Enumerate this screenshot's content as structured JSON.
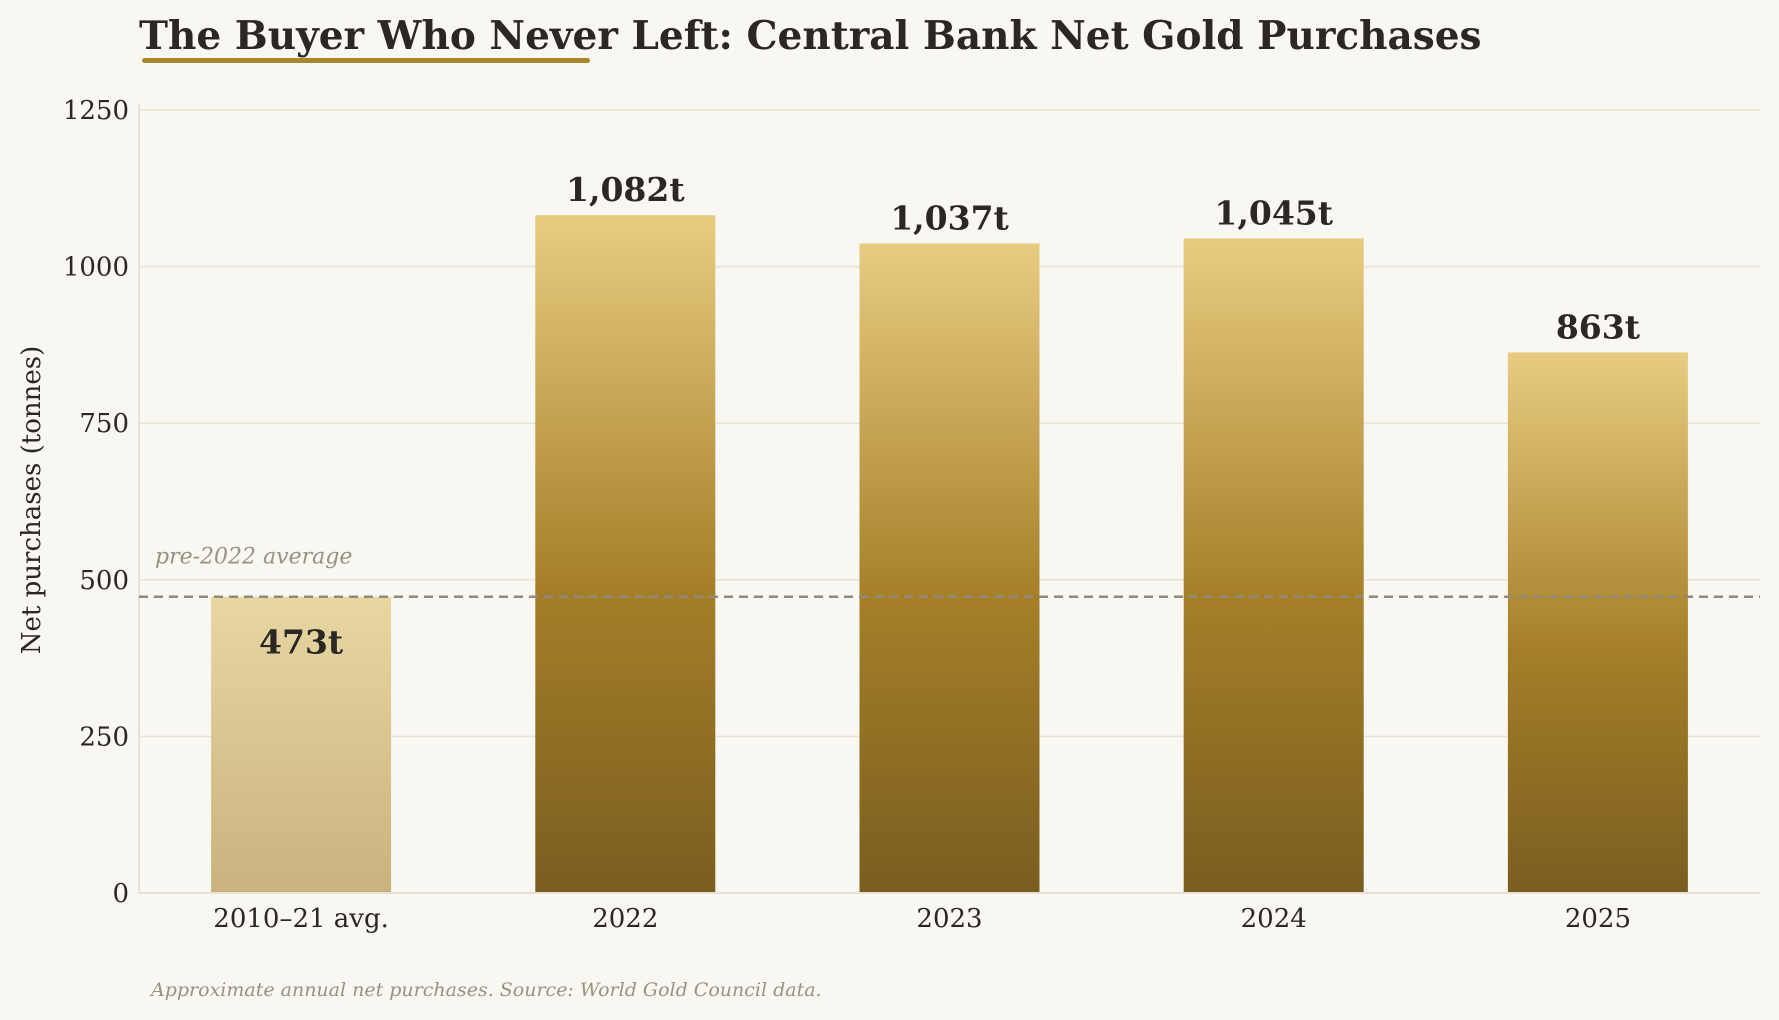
{
  "chart_data": {
    "type": "bar",
    "title": "The Buyer Who Never Left: Central Bank Net Gold Purchases",
    "ylabel": "Net purchases (tonnes)",
    "xlabel": "",
    "categories": [
      "2010–21 avg.",
      "2022",
      "2023",
      "2024",
      "2025"
    ],
    "values": [
      473,
      1082,
      1037,
      1045,
      863
    ],
    "data_labels": [
      "473t",
      "1,082t",
      "1,037t",
      "1,045t",
      "863t"
    ],
    "ylim": [
      0,
      1260
    ],
    "yticks": [
      0,
      250,
      500,
      750,
      1000,
      1250
    ],
    "grid": true,
    "reference_line": {
      "value": 473,
      "label": "pre-2022 average",
      "style": "dashed"
    },
    "footnote": "Approximate annual net purchases. Source: World Gold Council data.",
    "colors": {
      "background": "#f9f7f2",
      "grid": "#e7e3d2",
      "text": "#2b2722",
      "muted_text": "#9a9280",
      "accent_underline": "#a8862a",
      "reference_line": "#8f8a7c",
      "bar_top": "#e8cc82",
      "bar_mid": "#a57f28",
      "bar_bottom": "#7a5e20",
      "baseline_bar_top": "#e8d7a3",
      "baseline_bar_bottom": "#c9b27e"
    }
  }
}
